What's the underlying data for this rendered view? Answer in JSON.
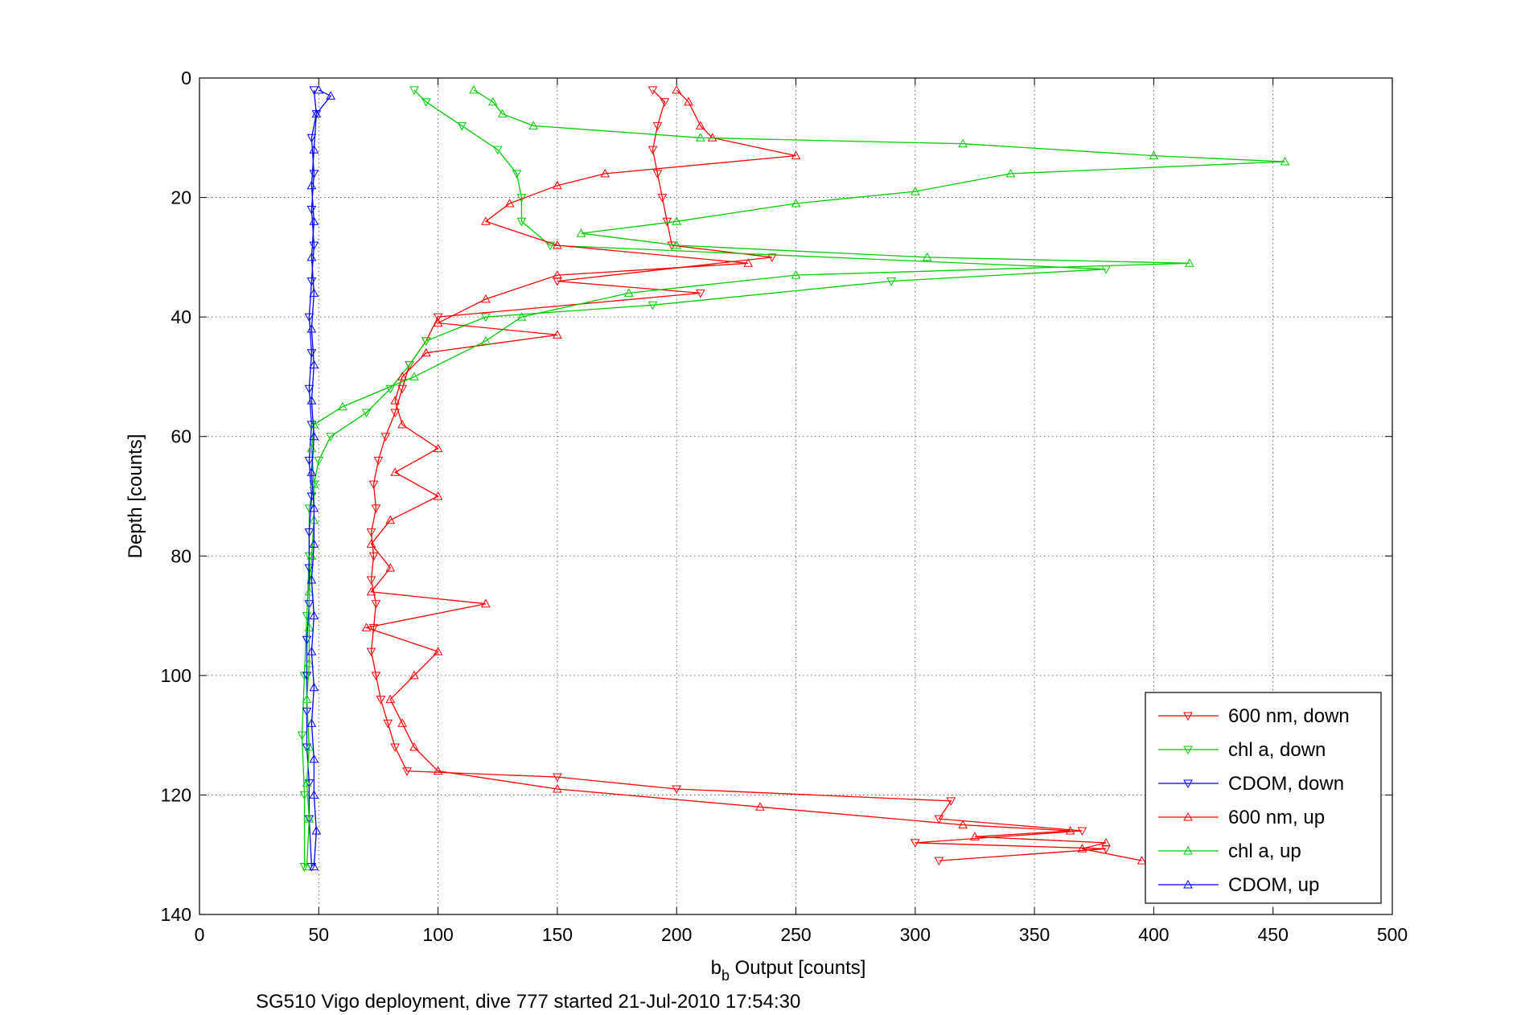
{
  "chart_data": {
    "type": "line",
    "title": "",
    "xlabel_main": "b",
    "xlabel_sub": "b",
    "xlabel_rest": " Output [counts]",
    "ylabel": "Depth [counts]",
    "caption": "SG510 Vigo deployment, dive 777 started 21-Jul-2010 17:54:30",
    "xlim": [
      0,
      500
    ],
    "ylim": [
      0,
      140
    ],
    "y_reversed": true,
    "grid": true,
    "legend_position": "bottom-right",
    "x_ticks": [
      "0",
      "50",
      "100",
      "150",
      "200",
      "250",
      "300",
      "350",
      "400",
      "450",
      "500"
    ],
    "y_ticks": [
      "0",
      "20",
      "40",
      "60",
      "80",
      "100",
      "120",
      "140"
    ],
    "series": [
      {
        "name": "600 nm, down",
        "color": "#ff0000",
        "marker": "down",
        "points": [
          [
            190,
            2
          ],
          [
            195,
            4
          ],
          [
            192,
            8
          ],
          [
            190,
            12
          ],
          [
            192,
            16
          ],
          [
            194,
            20
          ],
          [
            196,
            24
          ],
          [
            198,
            28
          ],
          [
            240,
            30
          ],
          [
            150,
            34
          ],
          [
            210,
            36
          ],
          [
            100,
            40
          ],
          [
            95,
            44
          ],
          [
            88,
            48
          ],
          [
            85,
            52
          ],
          [
            82,
            56
          ],
          [
            78,
            60
          ],
          [
            75,
            64
          ],
          [
            73,
            68
          ],
          [
            74,
            72
          ],
          [
            72,
            76
          ],
          [
            73,
            80
          ],
          [
            72,
            84
          ],
          [
            74,
            88
          ],
          [
            73,
            92
          ],
          [
            72,
            96
          ],
          [
            74,
            100
          ],
          [
            76,
            104
          ],
          [
            79,
            108
          ],
          [
            82,
            112
          ],
          [
            87,
            116
          ],
          [
            150,
            117
          ],
          [
            200,
            119
          ],
          [
            315,
            121
          ],
          [
            310,
            124
          ],
          [
            370,
            126
          ],
          [
            300,
            128
          ],
          [
            380,
            129
          ],
          [
            310,
            131
          ]
        ]
      },
      {
        "name": "chl a, down",
        "color": "#00cc00",
        "marker": "down",
        "points": [
          [
            90,
            2
          ],
          [
            95,
            4
          ],
          [
            110,
            8
          ],
          [
            125,
            12
          ],
          [
            133,
            16
          ],
          [
            135,
            20
          ],
          [
            135,
            24
          ],
          [
            147,
            28
          ],
          [
            380,
            32
          ],
          [
            290,
            34
          ],
          [
            190,
            38
          ],
          [
            120,
            40
          ],
          [
            95,
            44
          ],
          [
            88,
            48
          ],
          [
            80,
            52
          ],
          [
            70,
            56
          ],
          [
            55,
            60
          ],
          [
            50,
            64
          ],
          [
            48,
            68
          ],
          [
            46,
            72
          ],
          [
            46,
            80
          ],
          [
            45,
            90
          ],
          [
            44,
            100
          ],
          [
            43,
            110
          ],
          [
            44,
            120
          ],
          [
            44,
            132
          ]
        ]
      },
      {
        "name": "CDOM, down",
        "color": "#0000ff",
        "marker": "down",
        "points": [
          [
            48,
            2
          ],
          [
            49,
            6
          ],
          [
            47,
            10
          ],
          [
            48,
            16
          ],
          [
            47,
            22
          ],
          [
            48,
            28
          ],
          [
            47,
            34
          ],
          [
            46,
            40
          ],
          [
            47,
            46
          ],
          [
            46,
            52
          ],
          [
            47,
            58
          ],
          [
            46,
            64
          ],
          [
            47,
            70
          ],
          [
            46,
            76
          ],
          [
            46,
            82
          ],
          [
            46,
            88
          ],
          [
            45,
            94
          ],
          [
            45,
            100
          ],
          [
            45,
            106
          ],
          [
            45,
            112
          ],
          [
            46,
            118
          ],
          [
            46,
            124
          ],
          [
            47,
            132
          ]
        ]
      },
      {
        "name": "600 nm, up",
        "color": "#ff0000",
        "marker": "up",
        "points": [
          [
            395,
            131
          ],
          [
            370,
            129
          ],
          [
            380,
            128
          ],
          [
            325,
            127
          ],
          [
            365,
            126
          ],
          [
            320,
            125
          ],
          [
            235,
            122
          ],
          [
            150,
            119
          ],
          [
            100,
            116
          ],
          [
            90,
            112
          ],
          [
            85,
            108
          ],
          [
            80,
            104
          ],
          [
            90,
            100
          ],
          [
            100,
            96
          ],
          [
            70,
            92
          ],
          [
            120,
            88
          ],
          [
            72,
            86
          ],
          [
            80,
            82
          ],
          [
            72,
            78
          ],
          [
            80,
            74
          ],
          [
            100,
            70
          ],
          [
            82,
            66
          ],
          [
            100,
            62
          ],
          [
            85,
            58
          ],
          [
            82,
            54
          ],
          [
            85,
            50
          ],
          [
            95,
            46
          ],
          [
            150,
            43
          ],
          [
            100,
            41
          ],
          [
            120,
            37
          ],
          [
            150,
            33
          ],
          [
            230,
            31
          ],
          [
            150,
            28
          ],
          [
            120,
            24
          ],
          [
            130,
            21
          ],
          [
            150,
            18
          ],
          [
            170,
            16
          ],
          [
            250,
            13
          ],
          [
            215,
            10
          ],
          [
            210,
            8
          ],
          [
            205,
            4
          ],
          [
            200,
            2
          ]
        ]
      },
      {
        "name": "chl a, up",
        "color": "#00cc00",
        "marker": "up",
        "points": [
          [
            45,
            132
          ],
          [
            46,
            124
          ],
          [
            45,
            118
          ],
          [
            46,
            112
          ],
          [
            45,
            104
          ],
          [
            46,
            98
          ],
          [
            46,
            92
          ],
          [
            46,
            86
          ],
          [
            47,
            80
          ],
          [
            48,
            74
          ],
          [
            48,
            68
          ],
          [
            47,
            62
          ],
          [
            48,
            58
          ],
          [
            60,
            55
          ],
          [
            90,
            50
          ],
          [
            120,
            44
          ],
          [
            135,
            40
          ],
          [
            180,
            36
          ],
          [
            250,
            33
          ],
          [
            415,
            31
          ],
          [
            305,
            30
          ],
          [
            200,
            28
          ],
          [
            160,
            26
          ],
          [
            200,
            24
          ],
          [
            250,
            21
          ],
          [
            300,
            19
          ],
          [
            340,
            16
          ],
          [
            455,
            14
          ],
          [
            400,
            13
          ],
          [
            320,
            11
          ],
          [
            210,
            10
          ],
          [
            140,
            8
          ],
          [
            127,
            6
          ],
          [
            123,
            4
          ],
          [
            115,
            2
          ]
        ]
      },
      {
        "name": "CDOM, up",
        "color": "#0000ff",
        "marker": "up",
        "points": [
          [
            48,
            132
          ],
          [
            49,
            126
          ],
          [
            48,
            120
          ],
          [
            48,
            114
          ],
          [
            47,
            108
          ],
          [
            48,
            102
          ],
          [
            47,
            96
          ],
          [
            48,
            90
          ],
          [
            47,
            84
          ],
          [
            48,
            78
          ],
          [
            48,
            72
          ],
          [
            47,
            66
          ],
          [
            48,
            60
          ],
          [
            47,
            54
          ],
          [
            48,
            48
          ],
          [
            47,
            42
          ],
          [
            48,
            36
          ],
          [
            47,
            30
          ],
          [
            48,
            24
          ],
          [
            47,
            18
          ],
          [
            48,
            12
          ],
          [
            49,
            6
          ],
          [
            55,
            3
          ],
          [
            50,
            2
          ]
        ]
      }
    ]
  }
}
